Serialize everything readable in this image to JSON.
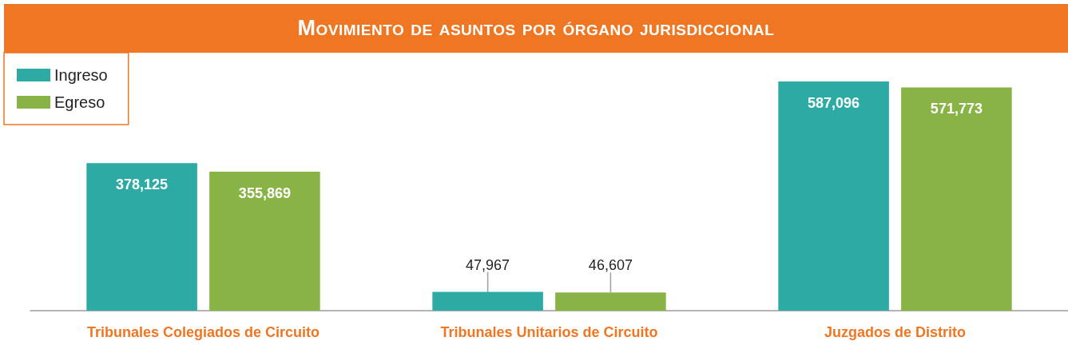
{
  "chart_data": {
    "type": "bar",
    "title": "Movimiento de asuntos por órgano jurisdiccional",
    "categories": [
      "Tribunales Colegiados de Circuito",
      "Tribunales Unitarios de Circuito",
      "Juzgados de Distrito"
    ],
    "series": [
      {
        "name": "Ingreso",
        "color": "#2eaaa5",
        "values": [
          378125,
          47967,
          587096
        ],
        "value_labels": [
          "378,125",
          "47,967",
          "587,096"
        ]
      },
      {
        "name": "Egreso",
        "color": "#88b446",
        "values": [
          355869,
          46607,
          571773
        ],
        "value_labels": [
          "355,869",
          "46,607",
          "571,773"
        ]
      }
    ],
    "legend": "top left",
    "tick_labels": "x"
  }
}
